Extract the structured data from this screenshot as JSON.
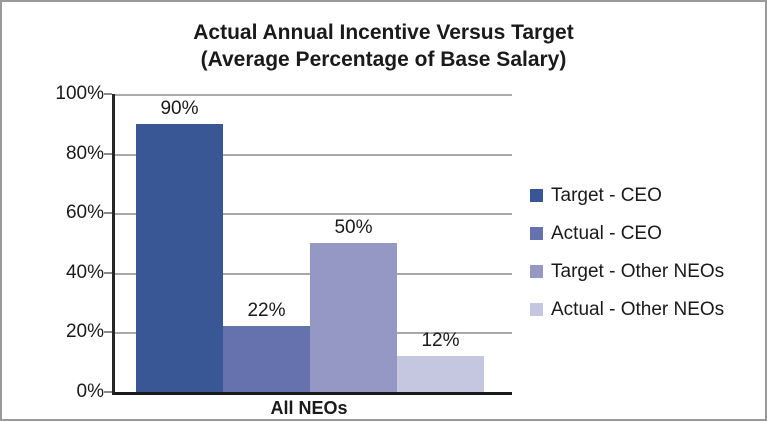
{
  "chart_data": {
    "type": "bar",
    "title": "Actual Annual Incentive Versus Target",
    "subtitle": "(Average Percentage of Base Salary)",
    "categories": [
      "All NEOs"
    ],
    "series": [
      {
        "name": "Target - CEO",
        "values": [
          90
        ],
        "data_label": "90%",
        "color": "#3A5795"
      },
      {
        "name": "Actual - CEO",
        "values": [
          22
        ],
        "data_label": "22%",
        "color": "#6672AD"
      },
      {
        "name": "Target - Other NEOs",
        "values": [
          50
        ],
        "data_label": "50%",
        "color": "#9598C5"
      },
      {
        "name": "Actual - Other NEOs",
        "values": [
          12
        ],
        "data_label": "12%",
        "color": "#C5C7E0"
      }
    ],
    "y_axis": {
      "min": 0,
      "max": 100,
      "ticks": [
        {
          "value": 0,
          "label": "0%"
        },
        {
          "value": 20,
          "label": "20%"
        },
        {
          "value": 40,
          "label": "40%"
        },
        {
          "value": 60,
          "label": "60%"
        },
        {
          "value": 80,
          "label": "80%"
        },
        {
          "value": 100,
          "label": "100%"
        }
      ]
    },
    "ylim": [
      0,
      100
    ],
    "grid": true,
    "legend_position": "right"
  },
  "colors": {
    "background": "#FFFFFF",
    "frame_border": "#9A9A9A",
    "axis": "#1A1A1A",
    "gridline": "#A9A9A9",
    "text": "#1A1A1A"
  }
}
